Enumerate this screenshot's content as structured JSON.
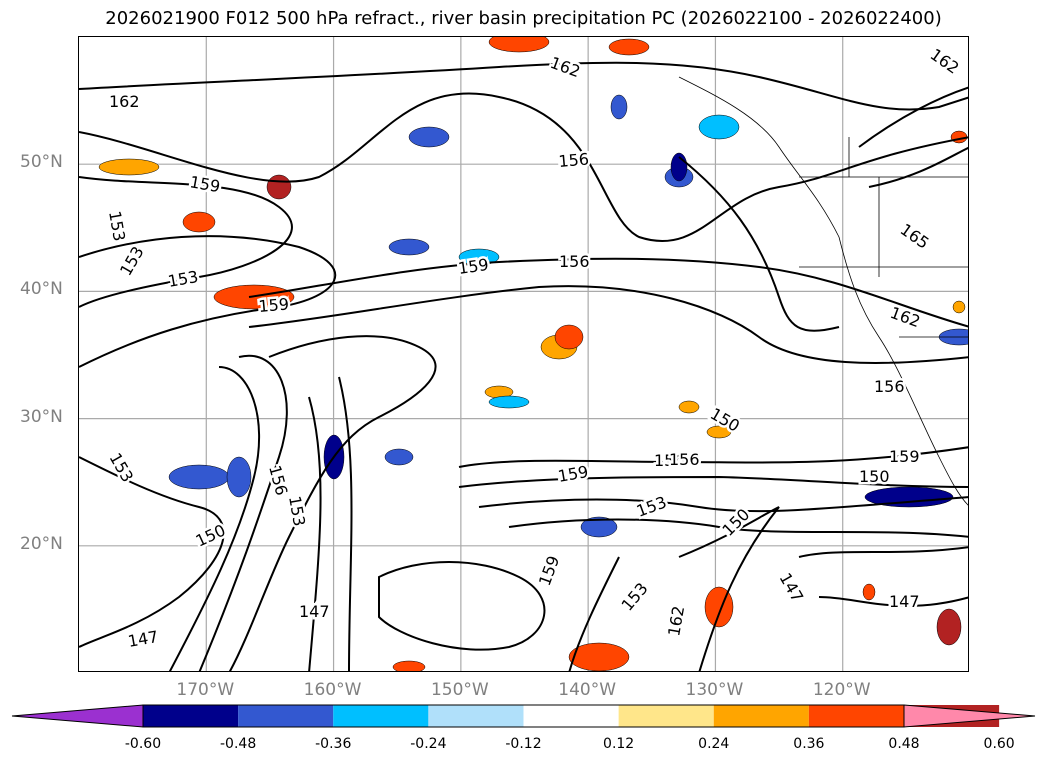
{
  "title": "2026021900 F012 500 hPa refract., river basin precipitation PC (2026022100 - 2026022400)",
  "axes": {
    "lat_labels": [
      "50°N",
      "40°N",
      "30°N",
      "20°N"
    ],
    "lon_labels": [
      "170°W",
      "160°W",
      "150°W",
      "140°W",
      "130°W",
      "120°W"
    ],
    "lat_values": [
      50,
      40,
      30,
      20
    ],
    "lon_values": [
      -170,
      -160,
      -150,
      -140,
      -130,
      -120
    ],
    "lon_range": [
      -180,
      -110
    ],
    "lat_range": [
      10,
      60
    ],
    "grid": true
  },
  "contour_labels": [
    "162",
    "162",
    "162",
    "159",
    "159",
    "159",
    "159",
    "159",
    "159",
    "156",
    "156",
    "156",
    "156",
    "156",
    "156",
    "153",
    "153",
    "153",
    "153",
    "153",
    "153",
    "153",
    "150",
    "150",
    "150",
    "150",
    "147",
    "147",
    "147",
    "147",
    "165",
    "162",
    "162"
  ],
  "colorbar": {
    "ticks": [
      "-0.60",
      "-0.48",
      "-0.36",
      "-0.24",
      "-0.12",
      "0.12",
      "0.24",
      "0.36",
      "0.48",
      "0.60"
    ],
    "colors": [
      "#9b30d0",
      "#00008b",
      "#3358d0",
      "#00bfff",
      "#b0e0fa",
      "#ffffff",
      "#ffe68a",
      "#ffa500",
      "#ff4500",
      "#b22222",
      "#ff88aa"
    ]
  },
  "colors": {
    "contour": "#000000",
    "grid": "#aaaaaa",
    "coast": "#000000"
  }
}
